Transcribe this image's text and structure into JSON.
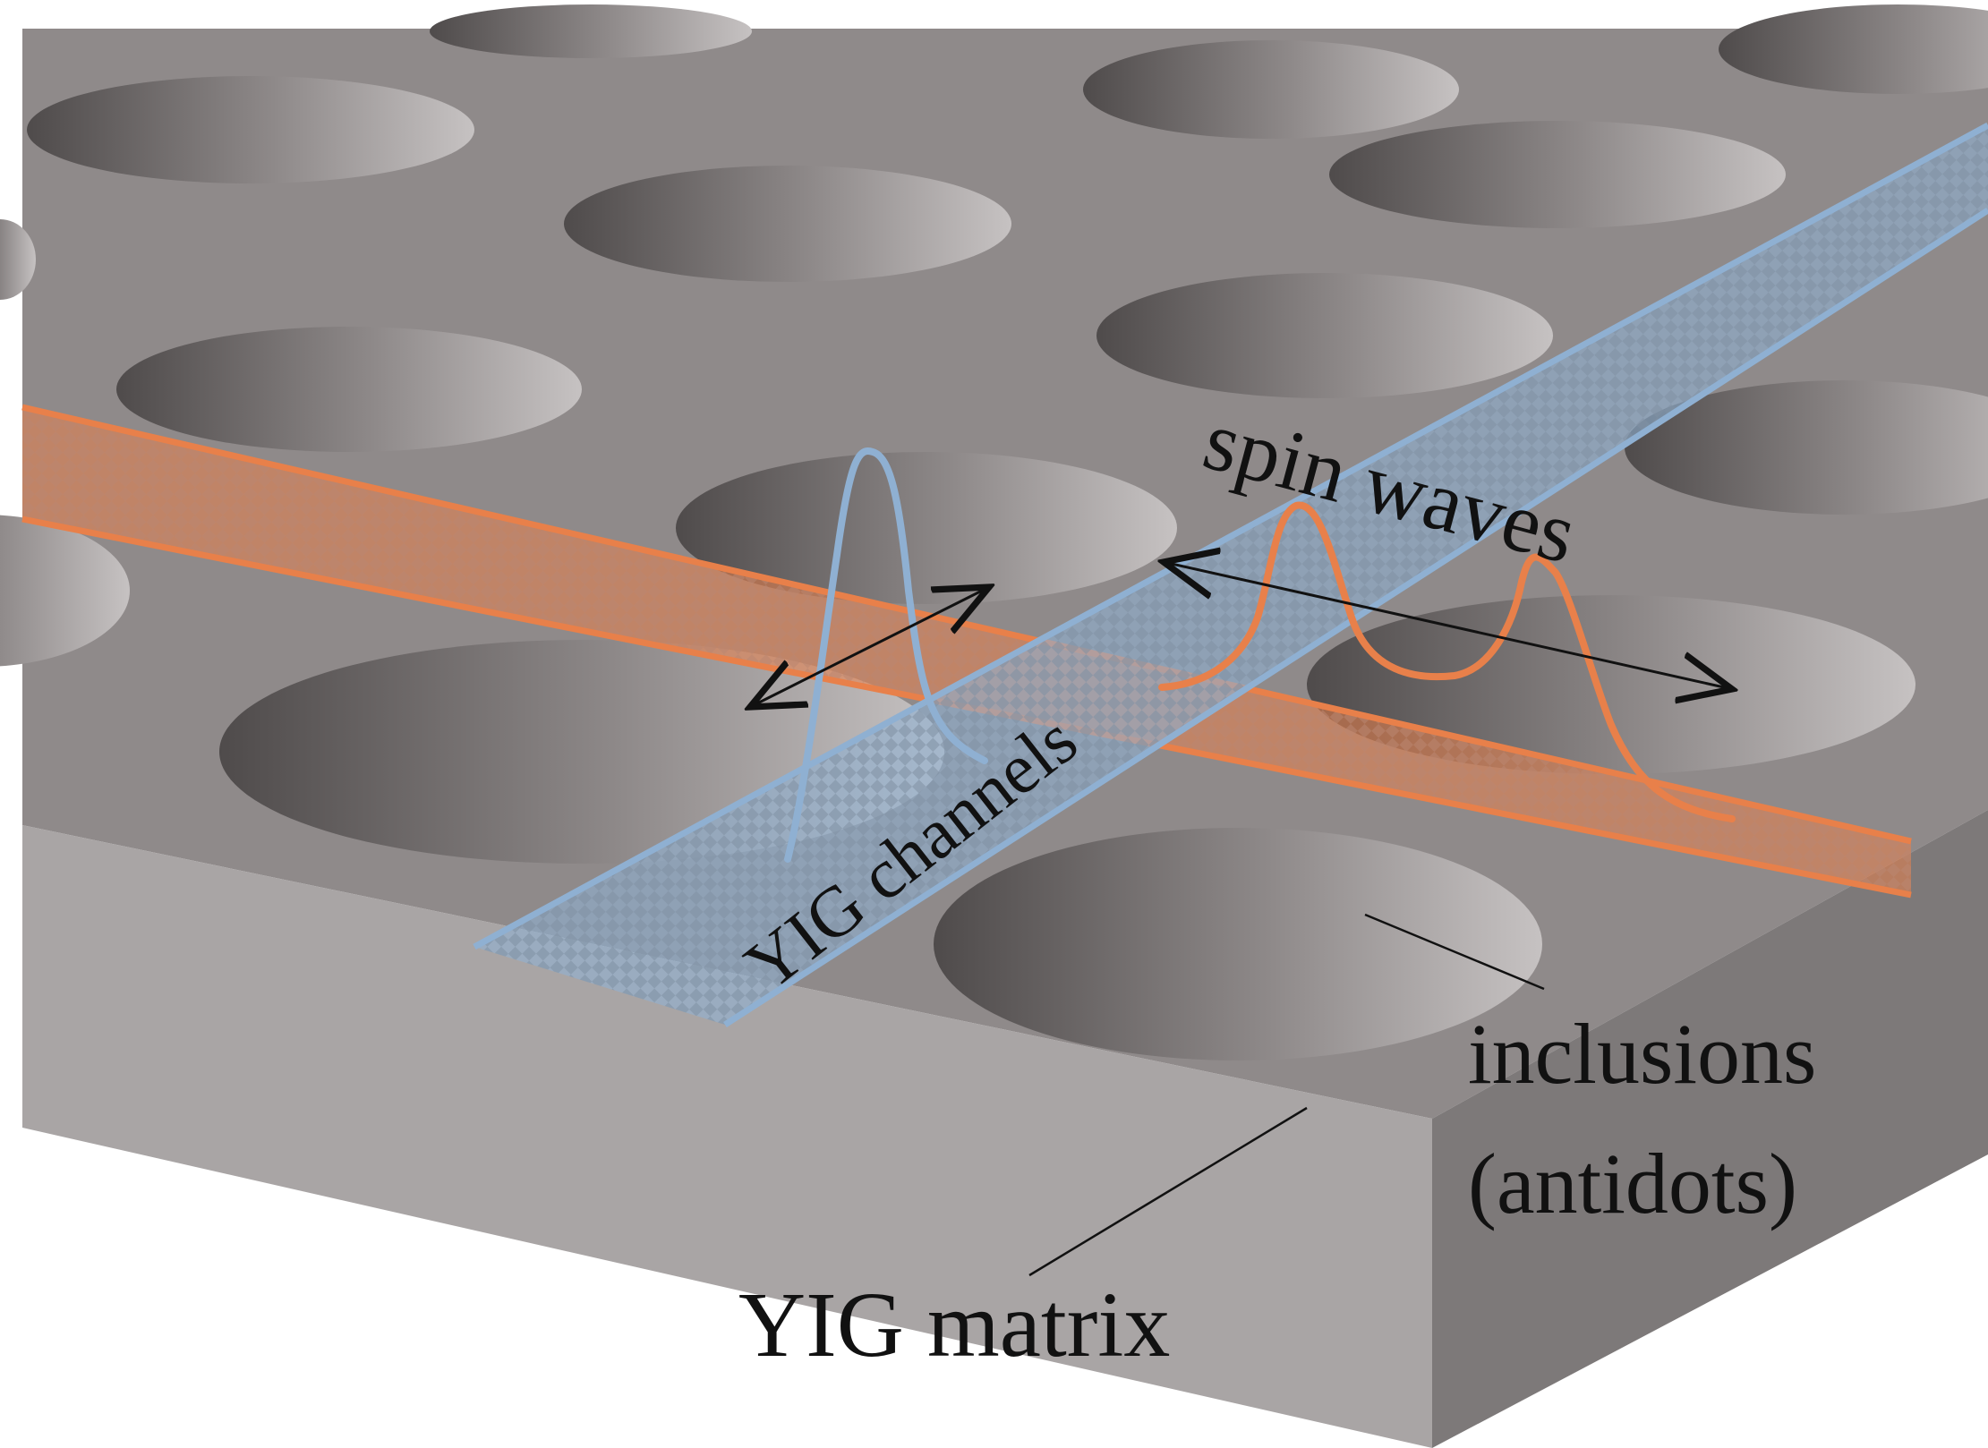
{
  "labels": {
    "spin_waves": "spin waves",
    "yig_channels": "YIG channels",
    "inclusions_line1": "inclusions",
    "inclusions_line2": "(antidots)",
    "yig_matrix": "YIG matrix"
  },
  "colors": {
    "background": "#ffffff",
    "slab_top": "#8f8a8a",
    "slab_front": "#a9a5a5",
    "slab_side": "#7d7979",
    "hole_dark": "#4f4b4b",
    "hole_light": "#c4c0c0",
    "orange_channel": "#e8804a",
    "blue_channel": "#8fb0d2",
    "annotation": "#111111"
  }
}
